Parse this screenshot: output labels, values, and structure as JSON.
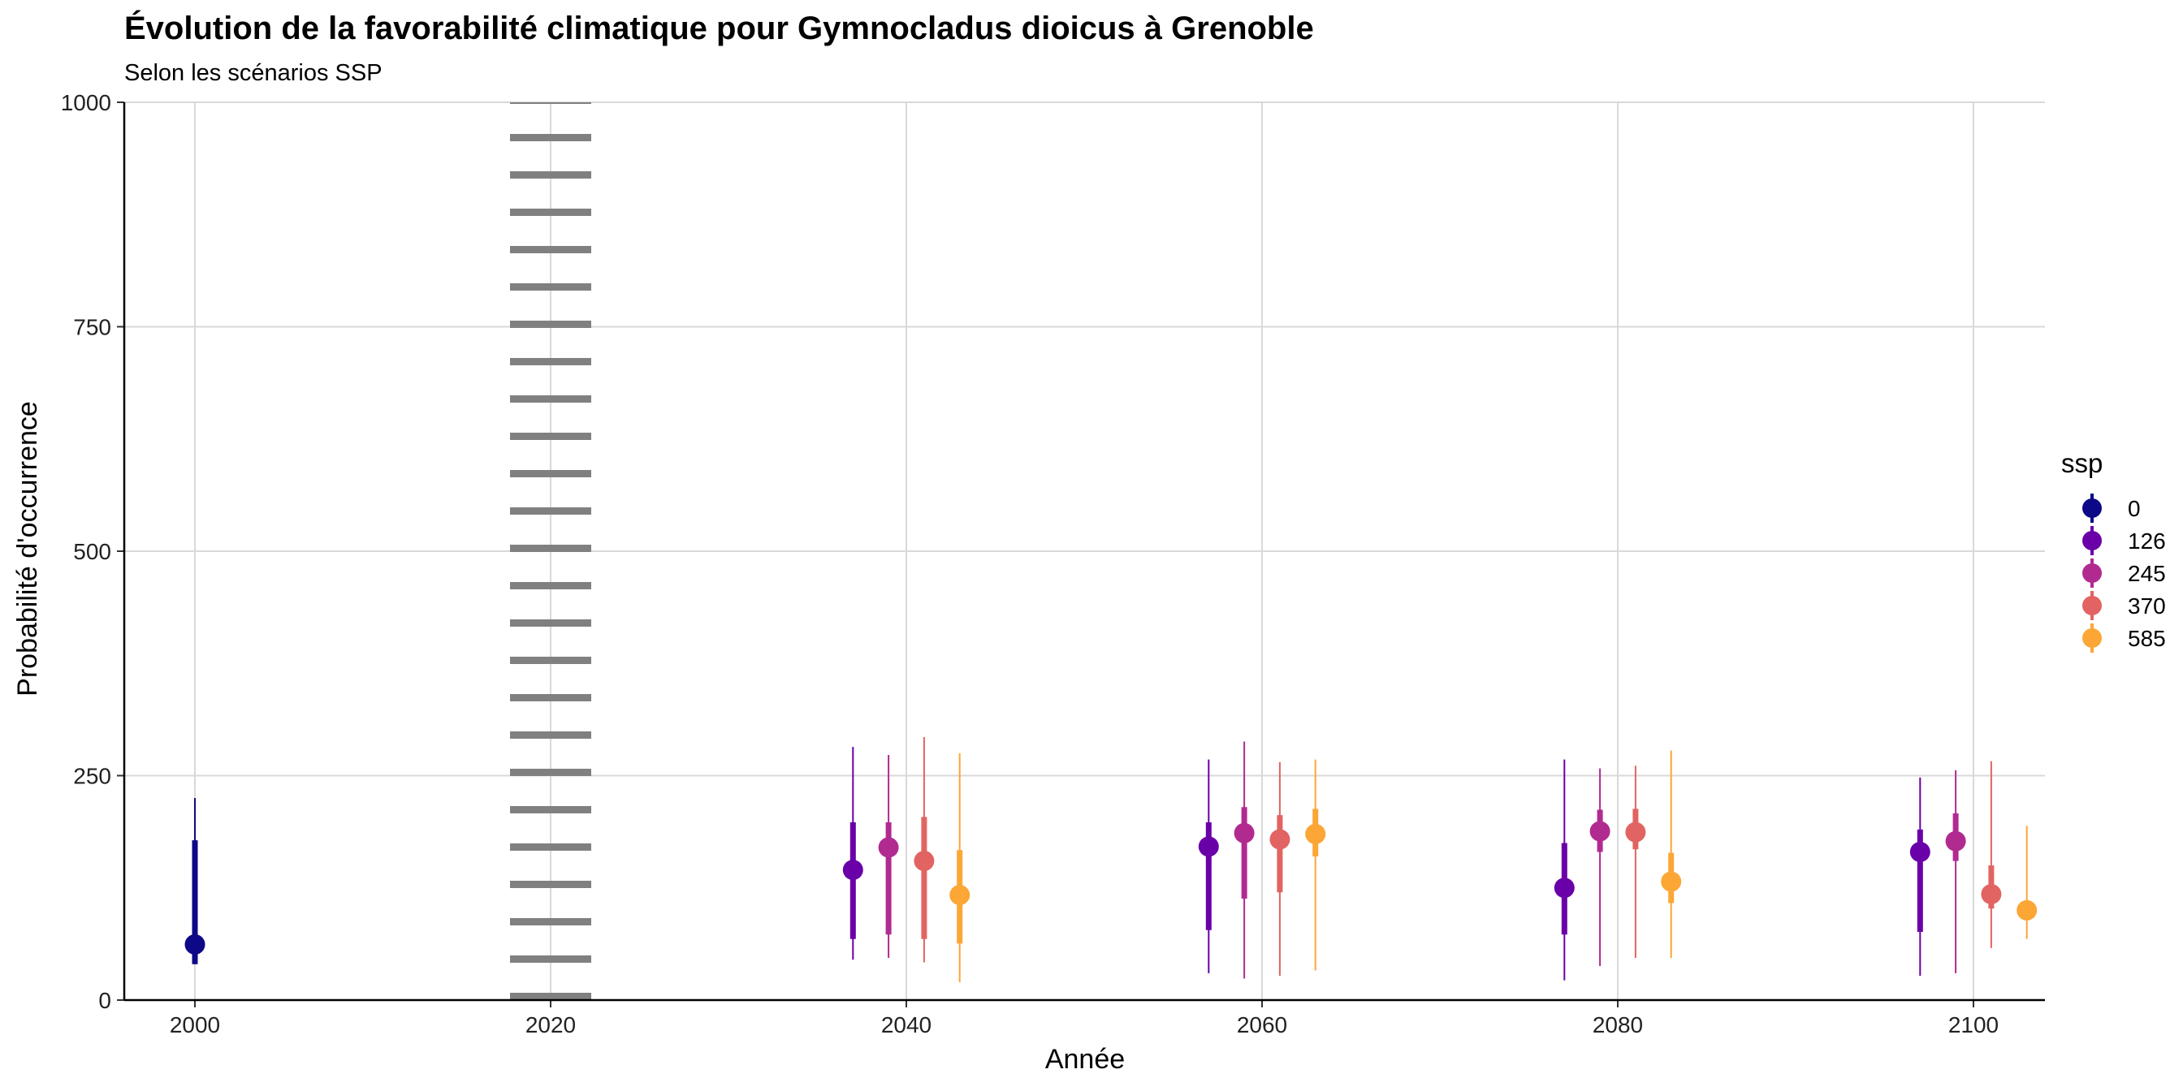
{
  "chart_data": {
    "type": "scatter",
    "title": "Évolution de la favorabilité climatique pour Gymnocladus dioicus à Grenoble",
    "subtitle": "Selon les scénarios SSP",
    "xlabel": "Année",
    "ylabel": "Probabilité d'occurrence",
    "xlim": [
      1996,
      2104
    ],
    "ylim": [
      0,
      1000
    ],
    "x_ticks": [
      "2000",
      "2020",
      "2040",
      "2060",
      "2080",
      "2100"
    ],
    "y_ticks": [
      "0",
      "250",
      "500",
      "750",
      "1000"
    ],
    "reference_line": {
      "x": 2020,
      "style": "dotted"
    },
    "legend": {
      "title": "ssp",
      "entries": [
        {
          "label": "0",
          "color": "#0d0887"
        },
        {
          "label": "126",
          "color": "#6a00a8"
        },
        {
          "label": "245",
          "color": "#b12a90"
        },
        {
          "label": "370",
          "color": "#e16462"
        },
        {
          "label": "585",
          "color": "#fca636"
        }
      ]
    },
    "series": [
      {
        "name": "0",
        "color": "#0d0887",
        "offset": 0,
        "points": [
          {
            "x": 2000,
            "y": 62,
            "inner": [
              40,
              178
            ],
            "outer": [
              40,
              225
            ]
          }
        ]
      },
      {
        "name": "126",
        "color": "#6a00a8",
        "offset": -3,
        "points": [
          {
            "x": 2040,
            "y": 145,
            "inner": [
              68,
              198
            ],
            "outer": [
              45,
              282
            ]
          },
          {
            "x": 2060,
            "y": 171,
            "inner": [
              78,
              198
            ],
            "outer": [
              30,
              268
            ]
          },
          {
            "x": 2080,
            "y": 125,
            "inner": [
              73,
              175
            ],
            "outer": [
              22,
              268
            ]
          },
          {
            "x": 2100,
            "y": 165,
            "inner": [
              76,
              190
            ],
            "outer": [
              27,
              248
            ]
          }
        ]
      },
      {
        "name": "245",
        "color": "#b12a90",
        "offset": -1,
        "points": [
          {
            "x": 2040,
            "y": 170,
            "inner": [
              73,
              198
            ],
            "outer": [
              47,
              273
            ]
          },
          {
            "x": 2060,
            "y": 186,
            "inner": [
              113,
              215
            ],
            "outer": [
              24,
              288
            ]
          },
          {
            "x": 2080,
            "y": 188,
            "inner": [
              165,
              212
            ],
            "outer": [
              38,
              258
            ]
          },
          {
            "x": 2100,
            "y": 177,
            "inner": [
              155,
              208
            ],
            "outer": [
              30,
              256
            ]
          }
        ]
      },
      {
        "name": "370",
        "color": "#e16462",
        "offset": 1,
        "points": [
          {
            "x": 2040,
            "y": 155,
            "inner": [
              68,
              204
            ],
            "outer": [
              42,
              293
            ]
          },
          {
            "x": 2060,
            "y": 179,
            "inner": [
              120,
              206
            ],
            "outer": [
              27,
              265
            ]
          },
          {
            "x": 2080,
            "y": 187,
            "inner": [
              168,
              213
            ],
            "outer": [
              47,
              261
            ]
          },
          {
            "x": 2100,
            "y": 118,
            "inner": [
              102,
              150
            ],
            "outer": [
              58,
              266
            ]
          }
        ]
      },
      {
        "name": "585",
        "color": "#fca636",
        "offset": 3,
        "points": [
          {
            "x": 2040,
            "y": 117,
            "inner": [
              63,
              167
            ],
            "outer": [
              20,
              275
            ]
          },
          {
            "x": 2060,
            "y": 185,
            "inner": [
              160,
              213
            ],
            "outer": [
              33,
              268
            ]
          },
          {
            "x": 2080,
            "y": 132,
            "inner": [
              108,
              164
            ],
            "outer": [
              47,
              278
            ]
          },
          {
            "x": 2100,
            "y": 100,
            "inner": [
              92,
              108
            ],
            "outer": [
              68,
              194
            ]
          }
        ]
      }
    ]
  }
}
